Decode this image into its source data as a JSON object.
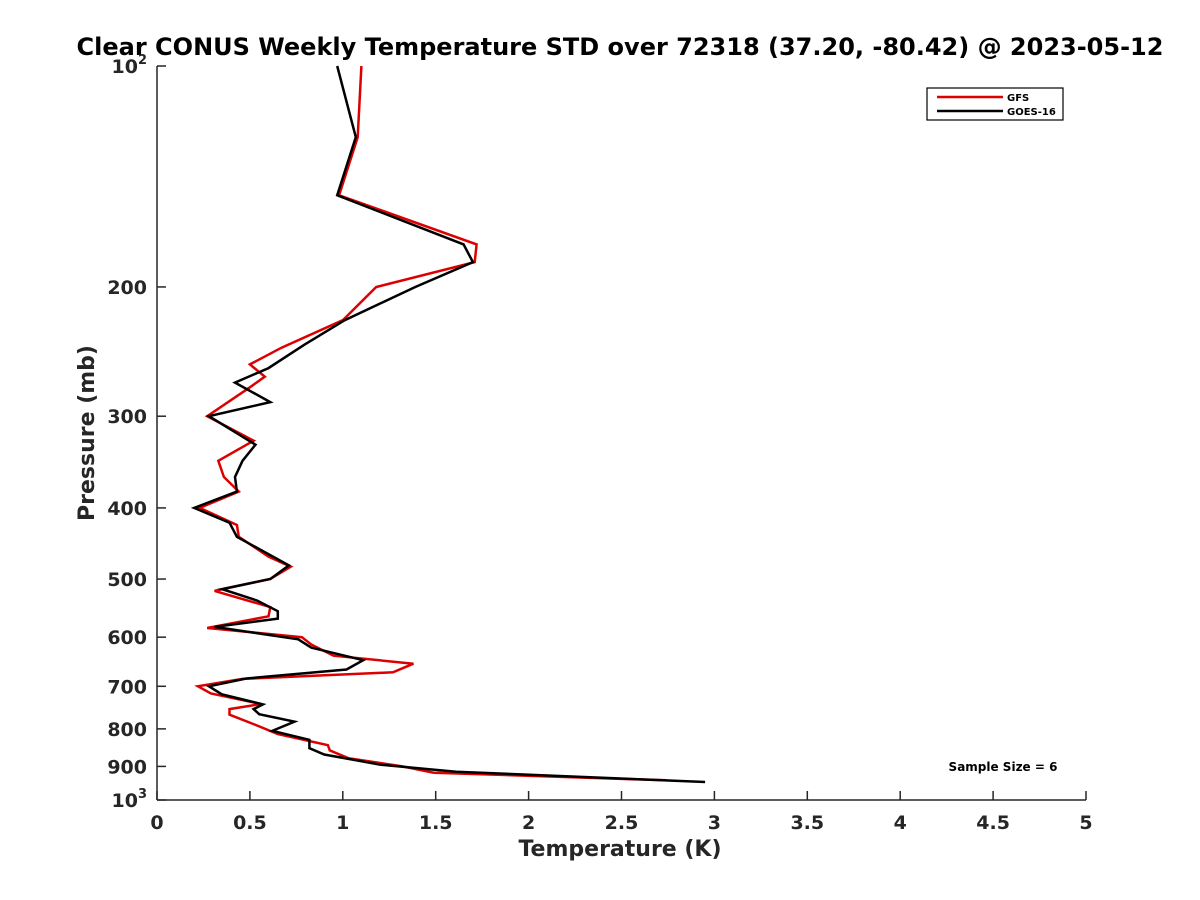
{
  "chart_data": {
    "type": "line",
    "title": "Clear CONUS Weekly Temperature STD over 72318 (37.20, -80.42) @ 2023-05-12",
    "xlabel": "Temperature (K)",
    "ylabel": "Pressure (mb)",
    "xlim": [
      0,
      5
    ],
    "ylim": [
      100,
      1000
    ],
    "y_scale": "log",
    "y_reversed": true,
    "x_ticks": [
      "0",
      "0.5",
      "1",
      "1.5",
      "2",
      "2.5",
      "3",
      "3.5",
      "4",
      "4.5",
      "5"
    ],
    "y_ticks": [
      {
        "value": 100,
        "base": "10",
        "exp": "2"
      },
      {
        "value": 200,
        "label": "200"
      },
      {
        "value": 300,
        "label": "300"
      },
      {
        "value": 400,
        "label": "400"
      },
      {
        "value": 500,
        "label": "500"
      },
      {
        "value": 600,
        "label": "600"
      },
      {
        "value": 700,
        "label": "700"
      },
      {
        "value": 800,
        "label": "800"
      },
      {
        "value": 900,
        "label": "900"
      },
      {
        "value": 1000,
        "base": "10",
        "exp": "3"
      }
    ],
    "grid": false,
    "legend_position": "top-right",
    "annotation": "Sample Size = 6",
    "series": [
      {
        "name": "GFS",
        "color": "#dd0000",
        "points": [
          [
            1.1,
            100
          ],
          [
            1.08,
            125
          ],
          [
            0.98,
            150
          ],
          [
            1.72,
            175
          ],
          [
            1.71,
            185
          ],
          [
            1.18,
            200
          ],
          [
            1.0,
            222
          ],
          [
            0.67,
            242
          ],
          [
            0.5,
            255
          ],
          [
            0.58,
            265
          ],
          [
            0.5,
            274
          ],
          [
            0.27,
            300
          ],
          [
            0.52,
            324
          ],
          [
            0.33,
            345
          ],
          [
            0.36,
            363
          ],
          [
            0.44,
            380
          ],
          [
            0.23,
            400
          ],
          [
            0.43,
            422
          ],
          [
            0.44,
            438
          ],
          [
            0.6,
            466
          ],
          [
            0.72,
            481
          ],
          [
            0.61,
            500
          ],
          [
            0.31,
            519
          ],
          [
            0.61,
            546
          ],
          [
            0.6,
            562
          ],
          [
            0.27,
            583
          ],
          [
            0.78,
            600
          ],
          [
            0.83,
            614
          ],
          [
            0.95,
            636
          ],
          [
            1.38,
            652
          ],
          [
            1.27,
            670
          ],
          [
            0.46,
            684
          ],
          [
            0.22,
            700
          ],
          [
            0.29,
            716
          ],
          [
            0.56,
            740
          ],
          [
            0.39,
            752
          ],
          [
            0.39,
            765
          ],
          [
            0.53,
            790
          ],
          [
            0.65,
            813
          ],
          [
            0.92,
            842
          ],
          [
            0.93,
            856
          ],
          [
            1.03,
            877
          ],
          [
            1.32,
            900
          ],
          [
            1.49,
            918
          ],
          [
            2.74,
            940
          ]
        ]
      },
      {
        "name": "GOES-16",
        "color": "#000000",
        "points": [
          [
            0.97,
            100
          ],
          [
            1.07,
            125
          ],
          [
            0.97,
            150
          ],
          [
            1.65,
            175
          ],
          [
            1.7,
            185
          ],
          [
            1.39,
            200
          ],
          [
            1.01,
            222
          ],
          [
            0.79,
            240
          ],
          [
            0.6,
            258
          ],
          [
            0.42,
            270
          ],
          [
            0.61,
            287
          ],
          [
            0.28,
            300
          ],
          [
            0.53,
            328
          ],
          [
            0.46,
            345
          ],
          [
            0.42,
            363
          ],
          [
            0.43,
            380
          ],
          [
            0.2,
            400
          ],
          [
            0.39,
            419
          ],
          [
            0.43,
            438
          ],
          [
            0.71,
            479
          ],
          [
            0.61,
            500
          ],
          [
            0.35,
            516
          ],
          [
            0.54,
            535
          ],
          [
            0.65,
            553
          ],
          [
            0.65,
            566
          ],
          [
            0.31,
            581
          ],
          [
            0.76,
            604
          ],
          [
            0.83,
            620
          ],
          [
            1.11,
            645
          ],
          [
            1.02,
            664
          ],
          [
            0.48,
            683
          ],
          [
            0.28,
            700
          ],
          [
            0.35,
            718
          ],
          [
            0.57,
            741
          ],
          [
            0.52,
            752
          ],
          [
            0.55,
            764
          ],
          [
            0.74,
            782
          ],
          [
            0.62,
            805
          ],
          [
            0.82,
            828
          ],
          [
            0.82,
            850
          ],
          [
            0.9,
            867
          ],
          [
            1.2,
            895
          ],
          [
            1.61,
            915
          ],
          [
            2.95,
            945
          ]
        ]
      }
    ]
  }
}
